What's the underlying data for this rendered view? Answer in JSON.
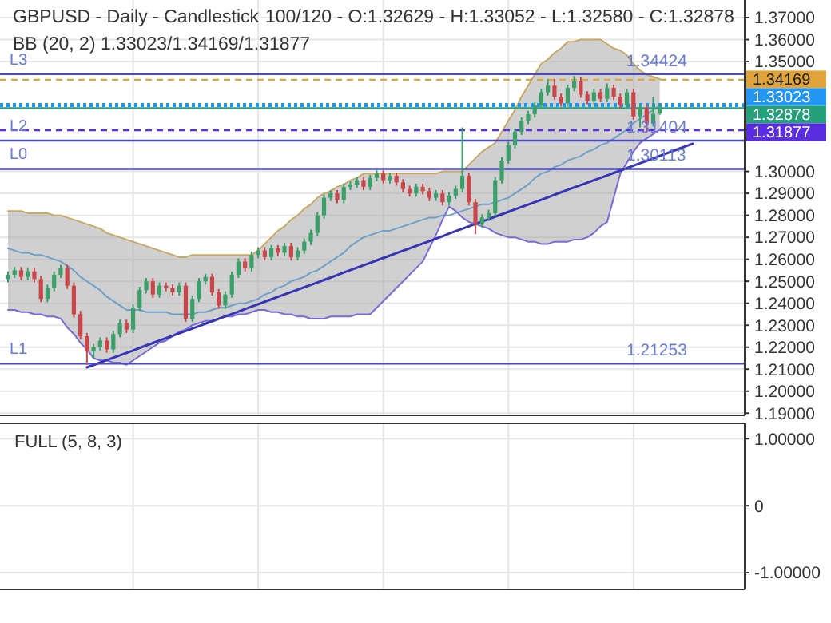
{
  "chart_data": [
    {
      "type": "candlestick",
      "title": "GBPUSD - Daily - Candlestick",
      "subtitle": "100/120 - O:1.32629 - H:1.33052 - L:1.32580 - C:1.32878",
      "categories": [
        null,
        null,
        null,
        null,
        null,
        null,
        null,
        null,
        null,
        null,
        null,
        null,
        null,
        null,
        null,
        null,
        null,
        null,
        null,
        null,
        null,
        null,
        null,
        null,
        null,
        null,
        null,
        null,
        null,
        null,
        null,
        null,
        null,
        null,
        null,
        null,
        null,
        null,
        null,
        null,
        null,
        null,
        null,
        null,
        null,
        null,
        null,
        null,
        null,
        null,
        null,
        null,
        null,
        null,
        null,
        null,
        null,
        null,
        null,
        null,
        null,
        null,
        null,
        null,
        null,
        null,
        null,
        null,
        null,
        null,
        null,
        null,
        null,
        null,
        null,
        null,
        null,
        null,
        null,
        null,
        null,
        null,
        null,
        null,
        null,
        null,
        null,
        null,
        null,
        null,
        null,
        null,
        null,
        null,
        null,
        null,
        null,
        null,
        null,
        null,
        null,
        null,
        null,
        null,
        null
      ],
      "ohlc": [
        [
          1.251,
          1.2545,
          1.2495,
          1.253
        ],
        [
          1.253,
          1.2565,
          1.2515,
          1.255
        ],
        [
          1.255,
          1.2565,
          1.2505,
          1.252
        ],
        [
          1.252,
          1.256,
          1.2505,
          1.2545
        ],
        [
          1.2545,
          1.256,
          1.2495,
          1.251
        ],
        [
          1.251,
          1.2525,
          1.2405,
          1.242
        ],
        [
          1.242,
          1.2485,
          1.2405,
          1.247
        ],
        [
          1.247,
          1.2545,
          1.2455,
          1.253
        ],
        [
          1.253,
          1.2575,
          1.2515,
          1.256
        ],
        [
          1.256,
          1.2575,
          1.2465,
          1.248
        ],
        [
          1.248,
          1.2495,
          1.2335,
          1.235
        ],
        [
          1.235,
          1.2365,
          1.2235,
          1.225
        ],
        [
          1.225,
          1.2265,
          1.212,
          1.218
        ],
        [
          1.218,
          1.2215,
          1.215,
          1.22
        ],
        [
          1.22,
          1.2245,
          1.2185,
          1.223
        ],
        [
          1.223,
          1.2245,
          1.2175,
          1.219
        ],
        [
          1.219,
          1.2275,
          1.2175,
          1.226
        ],
        [
          1.226,
          1.2325,
          1.2245,
          1.231
        ],
        [
          1.231,
          1.2325,
          1.2265,
          1.228
        ],
        [
          1.228,
          1.2395,
          1.2265,
          1.238
        ],
        [
          1.238,
          1.2475,
          1.2365,
          1.246
        ],
        [
          1.246,
          1.2515,
          1.2445,
          1.25
        ],
        [
          1.25,
          1.2515,
          1.2425,
          1.244
        ],
        [
          1.244,
          1.2495,
          1.2425,
          1.248
        ],
        [
          1.248,
          1.2495,
          1.2455,
          1.247
        ],
        [
          1.247,
          1.2485,
          1.2435,
          1.245
        ],
        [
          1.245,
          1.2495,
          1.2435,
          1.248
        ],
        [
          1.248,
          1.2495,
          1.2315,
          1.233
        ],
        [
          1.233,
          1.2435,
          1.2315,
          1.242
        ],
        [
          1.242,
          1.2515,
          1.2405,
          1.25
        ],
        [
          1.25,
          1.2535,
          1.2485,
          1.252
        ],
        [
          1.252,
          1.2535,
          1.2435,
          1.245
        ],
        [
          1.245,
          1.2465,
          1.2375,
          1.239
        ],
        [
          1.239,
          1.2455,
          1.2375,
          1.244
        ],
        [
          1.244,
          1.2545,
          1.2425,
          1.253
        ],
        [
          1.253,
          1.2605,
          1.2515,
          1.259
        ],
        [
          1.259,
          1.2605,
          1.2545,
          1.256
        ],
        [
          1.256,
          1.2635,
          1.2545,
          1.262
        ],
        [
          1.262,
          1.2655,
          1.2605,
          1.264
        ],
        [
          1.264,
          1.2655,
          1.2595,
          1.261
        ],
        [
          1.261,
          1.2665,
          1.2595,
          1.265
        ],
        [
          1.265,
          1.2665,
          1.2615,
          1.263
        ],
        [
          1.263,
          1.2675,
          1.2615,
          1.266
        ],
        [
          1.266,
          1.2675,
          1.2595,
          1.261
        ],
        [
          1.261,
          1.2655,
          1.2595,
          1.264
        ],
        [
          1.264,
          1.2695,
          1.2625,
          1.268
        ],
        [
          1.268,
          1.2735,
          1.2665,
          1.272
        ],
        [
          1.272,
          1.2815,
          1.2705,
          1.28
        ],
        [
          1.28,
          1.2895,
          1.2785,
          1.288
        ],
        [
          1.288,
          1.2915,
          1.2865,
          1.29
        ],
        [
          1.29,
          1.2915,
          1.2855,
          1.287
        ],
        [
          1.287,
          1.2945,
          1.2855,
          1.293
        ],
        [
          1.293,
          1.2955,
          1.2915,
          1.294
        ],
        [
          1.294,
          1.2975,
          1.2925,
          1.296
        ],
        [
          1.296,
          1.2975,
          1.2915,
          1.293
        ],
        [
          1.293,
          1.2985,
          1.2915,
          1.297
        ],
        [
          1.297,
          1.3005,
          1.2955,
          1.299
        ],
        [
          1.299,
          1.3005,
          1.2945,
          1.296
        ],
        [
          1.296,
          1.2995,
          1.2945,
          1.298
        ],
        [
          1.298,
          1.2995,
          1.2935,
          1.295
        ],
        [
          1.295,
          1.2965,
          1.2905,
          1.292
        ],
        [
          1.292,
          1.2935,
          1.2885,
          1.29
        ],
        [
          1.29,
          1.2945,
          1.2885,
          1.293
        ],
        [
          1.293,
          1.2945,
          1.2895,
          1.291
        ],
        [
          1.291,
          1.2925,
          1.2865,
          1.288
        ],
        [
          1.288,
          1.2915,
          1.2865,
          1.29
        ],
        [
          1.29,
          1.2915,
          1.2845,
          1.286
        ],
        [
          1.286,
          1.2905,
          1.2845,
          1.289
        ],
        [
          1.289,
          1.2935,
          1.2875,
          1.292
        ],
        [
          1.292,
          1.32,
          1.2905,
          1.298
        ],
        [
          1.298,
          1.2995,
          1.2845,
          1.286
        ],
        [
          1.286,
          1.2875,
          1.2715,
          1.276
        ],
        [
          1.276,
          1.2805,
          1.2745,
          1.279
        ],
        [
          1.279,
          1.2825,
          1.2775,
          1.281
        ],
        [
          1.281,
          1.2975,
          1.2795,
          1.296
        ],
        [
          1.296,
          1.3065,
          1.2945,
          1.305
        ],
        [
          1.305,
          1.3135,
          1.3035,
          1.312
        ],
        [
          1.312,
          1.3195,
          1.3105,
          1.318
        ],
        [
          1.318,
          1.3245,
          1.3165,
          1.323
        ],
        [
          1.323,
          1.3275,
          1.3215,
          1.326
        ],
        [
          1.326,
          1.3315,
          1.3245,
          1.33
        ],
        [
          1.33,
          1.3375,
          1.3285,
          1.336
        ],
        [
          1.336,
          1.342,
          1.3345,
          1.339
        ],
        [
          1.339,
          1.342,
          1.3325,
          1.334
        ],
        [
          1.334,
          1.3355,
          1.3295,
          1.331
        ],
        [
          1.331,
          1.3395,
          1.3295,
          1.338
        ],
        [
          1.338,
          1.3435,
          1.3365,
          1.341
        ],
        [
          1.341,
          1.343,
          1.3335,
          1.335
        ],
        [
          1.335,
          1.3365,
          1.3305,
          1.332
        ],
        [
          1.332,
          1.3375,
          1.3305,
          1.336
        ],
        [
          1.336,
          1.3375,
          1.3315,
          1.333
        ],
        [
          1.333,
          1.34,
          1.3315,
          1.338
        ],
        [
          1.338,
          1.3395,
          1.3325,
          1.334
        ],
        [
          1.334,
          1.3355,
          1.3285,
          1.33
        ],
        [
          1.33,
          1.3375,
          1.3285,
          1.336
        ],
        [
          1.336,
          1.3375,
          1.3235,
          1.325
        ],
        [
          1.325,
          1.3305,
          1.32,
          1.329
        ],
        [
          1.329,
          1.3305,
          1.318,
          1.322
        ],
        [
          1.322,
          1.334,
          1.3205,
          1.3262
        ],
        [
          1.32629,
          1.33052,
          1.3258,
          1.32878
        ],
        null,
        null,
        null,
        null,
        null
      ],
      "series": [
        {
          "type": "line",
          "color": "#d4a84a",
          "values": [
            1.282,
            1.282,
            1.282,
            1.281,
            1.281,
            1.281,
            1.281,
            1.28,
            1.28,
            1.279,
            1.278,
            1.277,
            1.276,
            1.275,
            1.274,
            1.272,
            1.271,
            1.27,
            1.269,
            1.268,
            1.267,
            1.266,
            1.265,
            1.264,
            1.263,
            1.262,
            1.261,
            1.261,
            1.262,
            1.262,
            1.262,
            1.262,
            1.262,
            1.262,
            1.262,
            1.262,
            1.262,
            1.262,
            1.264,
            1.267,
            1.27,
            1.273,
            1.275,
            1.278,
            1.28,
            1.283,
            1.285,
            1.288,
            1.29,
            1.291,
            1.293,
            1.294,
            1.296,
            1.297,
            1.299,
            1.299,
            1.299,
            1.299,
            1.299,
            1.299,
            1.299,
            1.299,
            1.299,
            1.299,
            1.299,
            1.299,
            1.3,
            1.3,
            1.3,
            1.3,
            1.303,
            1.306,
            1.309,
            1.311,
            1.313,
            1.318,
            1.323,
            1.328,
            1.334,
            1.339,
            1.344,
            1.349,
            1.351,
            1.354,
            1.356,
            1.359,
            1.359,
            1.36,
            1.36,
            1.36,
            1.36,
            1.358,
            1.356,
            1.355,
            1.353,
            1.349,
            1.346,
            1.344,
            1.343,
            1.342,
            null,
            null,
            null,
            null,
            null
          ]
        },
        {
          "type": "line",
          "color": "#6fa0c8",
          "values": [
            1.265,
            1.264,
            1.263,
            1.263,
            1.262,
            1.262,
            1.261,
            1.26,
            1.259,
            1.257,
            1.255,
            1.252,
            1.25,
            1.248,
            1.246,
            1.243,
            1.241,
            1.239,
            1.237,
            1.237,
            1.237,
            1.236,
            1.236,
            1.236,
            1.236,
            1.235,
            1.235,
            1.235,
            1.235,
            1.236,
            1.236,
            1.237,
            1.238,
            1.238,
            1.239,
            1.24,
            1.24,
            1.241,
            1.242,
            1.244,
            1.245,
            1.247,
            1.248,
            1.25,
            1.251,
            1.252,
            1.254,
            1.255,
            1.257,
            1.259,
            1.261,
            1.263,
            1.266,
            1.268,
            1.27,
            1.271,
            1.272,
            1.273,
            1.273,
            1.274,
            1.275,
            1.276,
            1.277,
            1.278,
            1.279,
            1.279,
            1.28,
            1.28,
            1.281,
            1.282,
            1.283,
            1.284,
            1.285,
            1.285,
            1.286,
            1.287,
            1.288,
            1.29,
            1.292,
            1.294,
            1.297,
            1.299,
            1.3,
            1.302,
            1.303,
            1.305,
            1.306,
            1.307,
            1.309,
            1.31,
            1.312,
            1.313,
            1.315,
            1.317,
            1.319,
            1.322,
            1.324,
            1.326,
            1.328,
            1.33,
            null,
            null,
            null,
            null,
            null
          ],
          "upper": [
            1.282,
            1.282,
            1.282,
            1.281,
            1.281,
            1.281,
            1.281,
            1.28,
            1.28,
            1.279,
            1.278,
            1.277,
            1.276,
            1.275,
            1.274,
            1.272,
            1.271,
            1.27,
            1.269,
            1.268,
            1.267,
            1.266,
            1.265,
            1.264,
            1.263,
            1.262,
            1.261,
            1.261,
            1.262,
            1.262,
            1.262,
            1.262,
            1.262,
            1.262,
            1.262,
            1.262,
            1.262,
            1.262,
            1.264,
            1.267,
            1.27,
            1.273,
            1.275,
            1.278,
            1.28,
            1.283,
            1.285,
            1.288,
            1.29,
            1.291,
            1.293,
            1.294,
            1.296,
            1.297,
            1.299,
            1.299,
            1.299,
            1.299,
            1.299,
            1.299,
            1.299,
            1.299,
            1.299,
            1.299,
            1.299,
            1.299,
            1.3,
            1.3,
            1.3,
            1.3,
            1.303,
            1.306,
            1.309,
            1.311,
            1.313,
            1.318,
            1.323,
            1.328,
            1.334,
            1.339,
            1.344,
            1.349,
            1.351,
            1.354,
            1.356,
            1.359,
            1.359,
            1.36,
            1.36,
            1.36,
            1.36,
            1.358,
            1.356,
            1.355,
            1.353,
            1.349,
            1.346,
            1.344,
            1.343,
            1.342,
            null,
            null,
            null,
            null,
            null
          ],
          "lower": [
            1.237,
            1.237,
            1.236,
            1.236,
            1.235,
            1.235,
            1.234,
            1.234,
            1.233,
            1.229,
            1.226,
            1.222,
            1.219,
            1.215,
            1.214,
            1.214,
            1.213,
            1.213,
            1.212,
            1.214,
            1.216,
            1.218,
            1.22,
            1.222,
            1.223,
            1.225,
            1.227,
            1.228,
            1.23,
            1.231,
            1.232,
            1.232,
            1.233,
            1.234,
            1.234,
            1.235,
            1.235,
            1.236,
            1.237,
            1.237,
            1.236,
            1.236,
            1.235,
            1.235,
            1.234,
            1.234,
            1.233,
            1.233,
            1.233,
            1.234,
            1.234,
            1.234,
            1.234,
            1.235,
            1.235,
            1.235,
            1.238,
            1.241,
            1.244,
            1.247,
            1.25,
            1.253,
            1.256,
            1.259,
            1.265,
            1.271,
            1.278,
            1.284,
            1.282,
            1.279,
            1.277,
            1.276,
            1.275,
            1.274,
            1.272,
            1.271,
            1.27,
            1.27,
            1.269,
            1.268,
            1.268,
            1.267,
            1.267,
            1.268,
            1.268,
            1.268,
            1.269,
            1.269,
            1.27,
            1.272,
            1.275,
            1.277,
            1.288,
            1.299,
            1.304,
            1.309,
            1.313,
            1.315,
            1.317,
            1.319,
            null,
            null,
            null,
            null,
            null
          ]
        },
        {
          "type": "line",
          "color": "#7a6ad8",
          "values": [
            1.237,
            1.237,
            1.236,
            1.236,
            1.235,
            1.235,
            1.234,
            1.234,
            1.233,
            1.229,
            1.226,
            1.222,
            1.219,
            1.215,
            1.214,
            1.214,
            1.213,
            1.213,
            1.212,
            1.214,
            1.216,
            1.218,
            1.22,
            1.222,
            1.223,
            1.225,
            1.227,
            1.228,
            1.23,
            1.231,
            1.232,
            1.232,
            1.233,
            1.234,
            1.234,
            1.235,
            1.235,
            1.236,
            1.237,
            1.237,
            1.236,
            1.236,
            1.235,
            1.235,
            1.234,
            1.234,
            1.233,
            1.233,
            1.233,
            1.234,
            1.234,
            1.234,
            1.234,
            1.235,
            1.235,
            1.235,
            1.238,
            1.241,
            1.244,
            1.247,
            1.25,
            1.253,
            1.256,
            1.259,
            1.265,
            1.271,
            1.278,
            1.284,
            1.282,
            1.279,
            1.277,
            1.276,
            1.275,
            1.274,
            1.272,
            1.271,
            1.27,
            1.27,
            1.269,
            1.268,
            1.268,
            1.267,
            1.267,
            1.268,
            1.268,
            1.268,
            1.269,
            1.269,
            1.27,
            1.272,
            1.275,
            1.277,
            1.288,
            1.299,
            1.304,
            1.309,
            1.313,
            1.315,
            1.317,
            1.319,
            null,
            null,
            null,
            null,
            null
          ]
        },
        {
          "type": "line",
          "color": "#3535b5",
          "values": [
            null,
            null,
            null,
            null,
            null,
            null,
            null,
            null,
            null,
            null,
            null,
            null,
            1.2108,
            1.2119,
            1.213,
            1.2141,
            1.2152,
            1.2163,
            1.2174,
            1.2185,
            1.2197,
            1.2208,
            1.2219,
            1.223,
            1.2241,
            1.2252,
            1.2263,
            1.2274,
            1.2285,
            1.2296,
            1.2307,
            1.2318,
            1.2329,
            1.234,
            1.2351,
            1.2362,
            1.2374,
            1.2385,
            1.2396,
            1.2407,
            1.2418,
            1.2429,
            1.244,
            1.2451,
            1.2462,
            1.2473,
            1.2484,
            1.2495,
            1.2506,
            1.2517,
            1.2528,
            1.254,
            1.2551,
            1.2562,
            1.2573,
            1.2584,
            1.2595,
            1.2606,
            1.2617,
            1.2628,
            1.2639,
            1.265,
            1.2661,
            1.2672,
            1.2683,
            1.2694,
            1.2705,
            1.2717,
            1.2728,
            1.2739,
            1.275,
            1.2761,
            1.2772,
            1.2783,
            1.2794,
            1.2805,
            1.2816,
            1.2827,
            1.2838,
            1.2849,
            1.286,
            1.2871,
            1.2882,
            1.2894,
            1.2905,
            1.2916,
            1.2927,
            1.2938,
            1.2949,
            1.296,
            1.2971,
            1.2982,
            1.2993,
            1.3004,
            1.3015,
            1.3026,
            1.3037,
            1.3048,
            1.3059,
            1.3071,
            1.3082,
            1.3093,
            1.3104,
            1.3115,
            1.3126
          ]
        }
      ],
      "ylim": [
        1.189,
        1.378
      ],
      "yticks": [
        {
          "value": 1.19,
          "label": "1.19000"
        },
        {
          "value": 1.2,
          "label": "1.20000"
        },
        {
          "value": 1.21,
          "label": "1.21000"
        },
        {
          "value": 1.22,
          "label": "1.22000"
        },
        {
          "value": 1.23,
          "label": "1.23000"
        },
        {
          "value": 1.24,
          "label": "1.24000"
        },
        {
          "value": 1.25,
          "label": "1.25000"
        },
        {
          "value": 1.26,
          "label": "1.26000"
        },
        {
          "value": 1.27,
          "label": "1.27000"
        },
        {
          "value": 1.28,
          "label": "1.28000"
        },
        {
          "value": 1.29,
          "label": "1.29000"
        },
        {
          "value": 1.3,
          "label": "1.30000"
        },
        {
          "value": 1.35,
          "label": "1.35000"
        },
        {
          "value": 1.36,
          "label": "1.36000"
        },
        {
          "value": 1.37,
          "label": "1.37000"
        }
      ],
      "ref_lines": [
        {
          "axis": "y",
          "value": 1.34424,
          "label": "L3",
          "color": "#4a4ab8",
          "line_style": "solid"
        },
        {
          "axis": "y",
          "value": 1.31404,
          "label": "L2",
          "color": "#4a4ab8",
          "line_style": "solid"
        },
        {
          "axis": "y",
          "value": 1.30113,
          "label": "L0",
          "color": "#4a4ab8",
          "line_style": "solid"
        },
        {
          "axis": "y",
          "value": 1.21253,
          "label": "L1",
          "color": "#4a4ab8",
          "line_style": "solid"
        },
        {
          "axis": "y",
          "value": 1.34169,
          "label": "1.34169",
          "color": "#e0a43a",
          "line_style": "dashed"
        },
        {
          "axis": "y",
          "value": 1.33023,
          "label": "1.33023",
          "color": "#2196f3",
          "line_style": "dotted"
        },
        {
          "axis": "y",
          "value": 1.32878,
          "label": "1.32878",
          "color": "#26a07a",
          "line_style": "solid"
        },
        {
          "axis": "y",
          "value": 1.31877,
          "label": "1.31877",
          "color": "#5b2de0",
          "line_style": "dashed"
        }
      ],
      "annotations": [
        "BB (20, 2)  1.33023/1.34169/1.31877",
        {
          "text": "1.34424",
          "y": 1.34424
        },
        {
          "text": "1.31404",
          "y": 1.31404
        },
        {
          "text": "1.30113",
          "y": 1.30113
        },
        {
          "text": "1.21253",
          "y": 1.21253
        }
      ],
      "grid": true,
      "legend": "right",
      "tick_labels": "y"
    },
    {
      "type": "line",
      "title": "FULL (5, 8, 3)",
      "categories": [
        null,
        null,
        null,
        null,
        null,
        null,
        null,
        null,
        null,
        null,
        null,
        null,
        null,
        null,
        null,
        null,
        null,
        null,
        null,
        null,
        null,
        null,
        null,
        null,
        null,
        null,
        null,
        null,
        null,
        null,
        null,
        null,
        null,
        null,
        null,
        null,
        null,
        null,
        null,
        null,
        null,
        null,
        null,
        null,
        null,
        null,
        null,
        null,
        null,
        null,
        null,
        null,
        null,
        null,
        null,
        null,
        null,
        null,
        null,
        null,
        null,
        null,
        null,
        null,
        null,
        null,
        null,
        null,
        null,
        null,
        null,
        null,
        null,
        null,
        null,
        null,
        null,
        null,
        null,
        null,
        null,
        null,
        null,
        null,
        null,
        null,
        null,
        null,
        null,
        null,
        null,
        null,
        null,
        null,
        null,
        null,
        null,
        null,
        null,
        null,
        null,
        null,
        null,
        null,
        null
      ],
      "ylim": [
        -1.25,
        1.23
      ],
      "yticks": [
        {
          "value": 1,
          "label": "1.00000"
        },
        0,
        {
          "value": -1,
          "label": "-1.00000"
        }
      ],
      "grid": true,
      "tick_labels": "y"
    }
  ]
}
